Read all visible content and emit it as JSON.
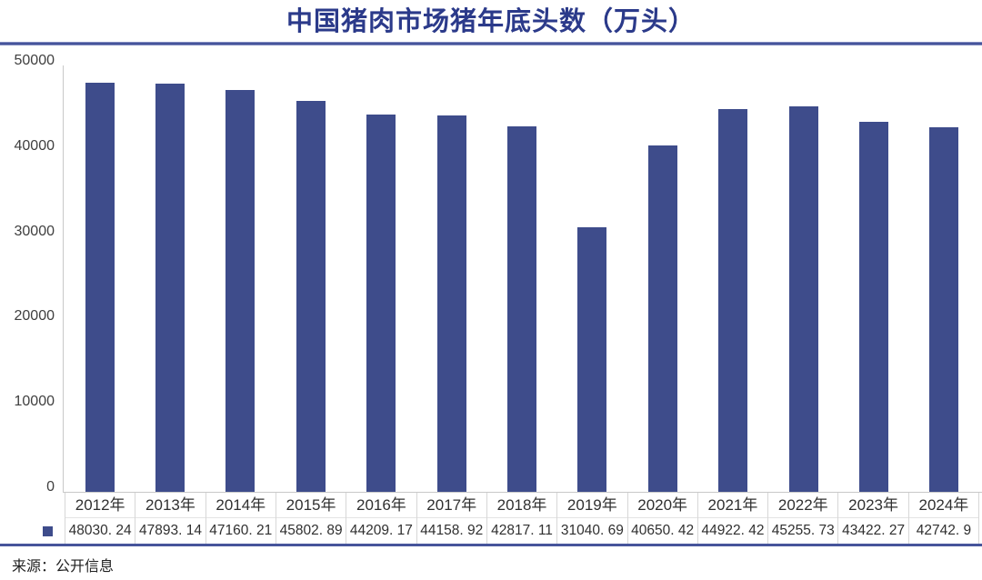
{
  "title": "中国猪肉市场猪年底头数（万头）",
  "source_note": "来源：公开信息",
  "colors": {
    "bar": "#3E4C8B",
    "title_text": "#2B3A8A",
    "divider": "#46549B",
    "axis_line": "#C9C9C9",
    "table_border": "#D7D7D7",
    "table_text": "#303030",
    "tick_text": "#3F3F3F"
  },
  "chart_data": {
    "type": "bar",
    "title": "中国猪肉市场猪年底头数（万头）",
    "categories": [
      "2012年",
      "2013年",
      "2014年",
      "2015年",
      "2016年",
      "2017年",
      "2018年",
      "2019年",
      "2020年",
      "2021年",
      "2022年",
      "2023年",
      "2024年"
    ],
    "values": [
      48030.24,
      47893.14,
      47160.21,
      45802.89,
      44209.17,
      44158.92,
      42817.11,
      31040.69,
      40650.42,
      44922.42,
      45255.73,
      43422.27,
      42742.9
    ],
    "display_values": [
      "48030. 24",
      "47893. 14",
      "47160. 21",
      "45802. 89",
      "44209. 17",
      "44158. 92",
      "42817. 11",
      "31040. 69",
      "40650. 42",
      "44922. 42",
      "45255. 73",
      "43422. 27",
      "42742. 9"
    ],
    "xlabel": "",
    "ylabel": "",
    "ylim": [
      0,
      50000
    ],
    "yticks": [
      0,
      10000,
      20000,
      30000,
      40000,
      50000
    ],
    "grid": false,
    "legend_position": "table-left-square-marker"
  }
}
